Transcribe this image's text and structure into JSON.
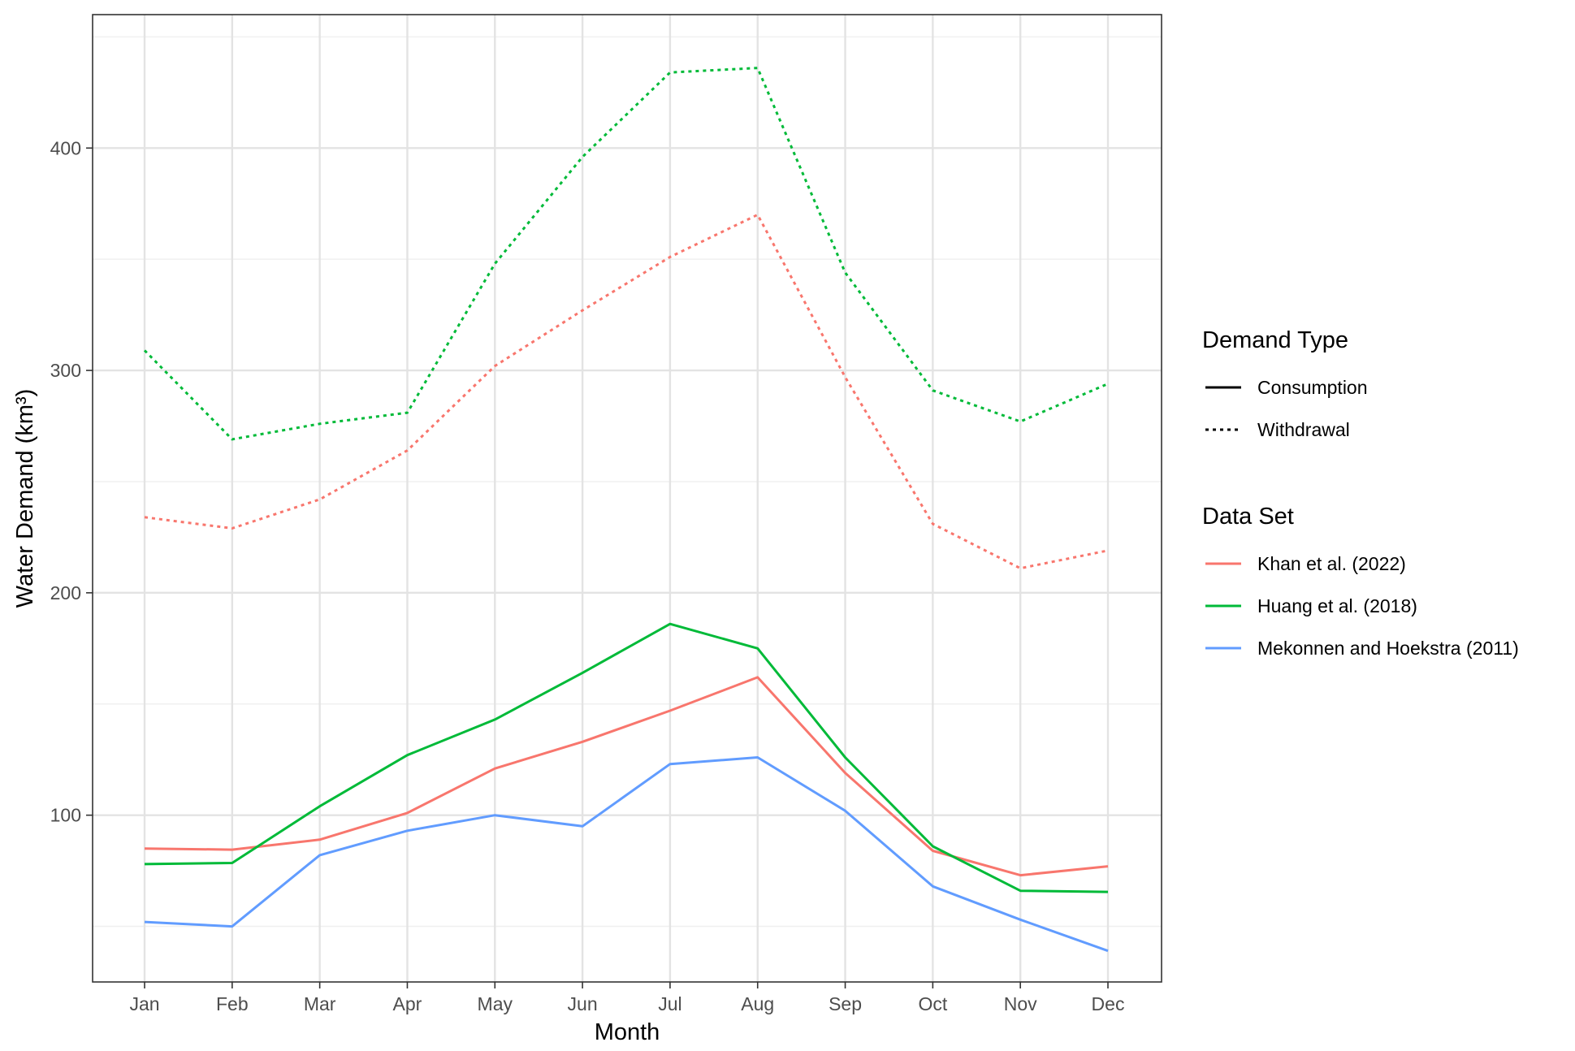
{
  "chart_data": {
    "type": "line",
    "title": "",
    "xlabel": "Month",
    "ylabel": "Water Demand (km³)",
    "categories": [
      "Jan",
      "Feb",
      "Mar",
      "Apr",
      "May",
      "Jun",
      "Jul",
      "Aug",
      "Sep",
      "Oct",
      "Nov",
      "Dec"
    ],
    "ylim": [
      25,
      460
    ],
    "yticks": [
      100,
      200,
      300,
      400
    ],
    "grid": true,
    "legend_position": "right",
    "colors": {
      "khan": "#F8766D",
      "huang": "#00BA38",
      "mekonnen": "#619CFF"
    },
    "series": [
      {
        "name": "Khan et al. (2022) – Consumption",
        "dataset": "khan",
        "demand_type": "consumption",
        "values": [
          85,
          84.5,
          89,
          101,
          121,
          133,
          147,
          162,
          119,
          84,
          73,
          77
        ]
      },
      {
        "name": "Khan et al. (2022) – Withdrawal",
        "dataset": "khan",
        "demand_type": "withdrawal",
        "values": [
          234,
          229,
          242,
          264,
          302,
          327,
          351,
          370,
          297,
          231,
          211,
          219
        ]
      },
      {
        "name": "Huang et al. (2018) – Consumption",
        "dataset": "huang",
        "demand_type": "consumption",
        "values": [
          78,
          78.5,
          104,
          127,
          143,
          164,
          186,
          175,
          126,
          86,
          66,
          65.5
        ]
      },
      {
        "name": "Huang et al. (2018) – Withdrawal",
        "dataset": "huang",
        "demand_type": "withdrawal",
        "values": [
          309,
          269,
          276,
          281,
          348,
          396,
          434,
          436,
          344,
          291,
          277,
          294
        ]
      },
      {
        "name": "Mekonnen and Hoekstra (2011) – Consumption",
        "dataset": "mekonnen",
        "demand_type": "consumption",
        "values": [
          52,
          50,
          82,
          93,
          100,
          95,
          123,
          126,
          102,
          68,
          53,
          39
        ]
      }
    ],
    "legend": {
      "demand_type": {
        "title": "Demand Type",
        "items": [
          {
            "label": "Consumption",
            "style": "solid"
          },
          {
            "label": "Withdrawal",
            "style": "dotted"
          }
        ]
      },
      "data_set": {
        "title": "Data Set",
        "items": [
          {
            "label": "Khan et al. (2022)",
            "key": "khan"
          },
          {
            "label": "Huang et al. (2018)",
            "key": "huang"
          },
          {
            "label": "Mekonnen and Hoekstra (2011)",
            "key": "mekonnen"
          }
        ]
      }
    }
  }
}
